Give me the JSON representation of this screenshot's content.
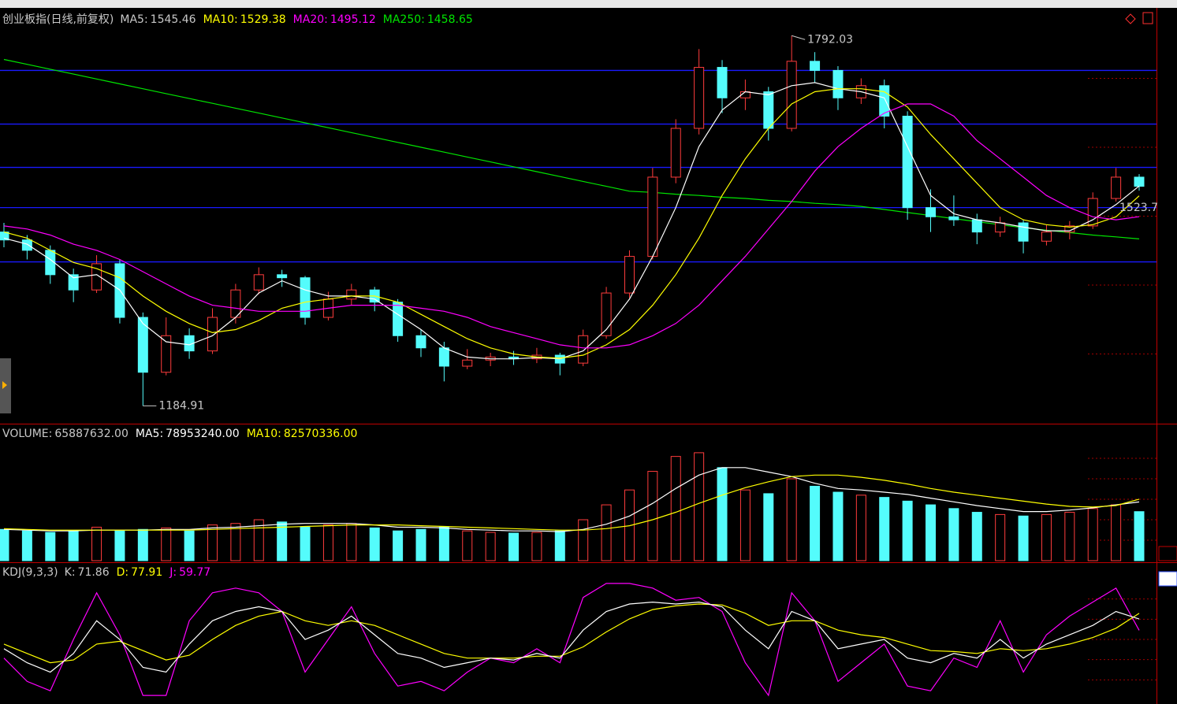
{
  "chart_data": [
    {
      "type": "candlestick",
      "title": "创业板指(日线,前复权)",
      "ylim": [
        1157,
        1835
      ],
      "up_color": "#ff3c3c",
      "down_color": "#54fcfc",
      "hlines": {
        "color": "#1a1aff",
        "values": [
          1735,
          1647,
          1576,
          1510,
          1421
        ]
      },
      "ohlc": [
        [
          1470,
          1485,
          1445,
          1457
        ],
        [
          1457,
          1465,
          1425,
          1440
        ],
        [
          1440,
          1448,
          1385,
          1400
        ],
        [
          1400,
          1410,
          1355,
          1375
        ],
        [
          1375,
          1432,
          1370,
          1418
        ],
        [
          1418,
          1425,
          1320,
          1330
        ],
        [
          1330,
          1338,
          1184.91,
          1240
        ],
        [
          1240,
          1330,
          1235,
          1300
        ],
        [
          1300,
          1312,
          1262,
          1275
        ],
        [
          1275,
          1345,
          1270,
          1330
        ],
        [
          1330,
          1385,
          1320,
          1375
        ],
        [
          1375,
          1412,
          1368,
          1400
        ],
        [
          1400,
          1408,
          1380,
          1395
        ],
        [
          1395,
          1398,
          1318,
          1330
        ],
        [
          1330,
          1372,
          1325,
          1360
        ],
        [
          1360,
          1385,
          1350,
          1375
        ],
        [
          1375,
          1380,
          1340,
          1355
        ],
        [
          1355,
          1360,
          1290,
          1300
        ],
        [
          1300,
          1310,
          1265,
          1280
        ],
        [
          1280,
          1290,
          1225,
          1250
        ],
        [
          1250,
          1278,
          1245,
          1260
        ],
        [
          1260,
          1272,
          1250,
          1265
        ],
        [
          1265,
          1275,
          1252,
          1262
        ],
        [
          1262,
          1280,
          1255,
          1268
        ],
        [
          1268,
          1272,
          1235,
          1255
        ],
        [
          1255,
          1310,
          1250,
          1300
        ],
        [
          1300,
          1380,
          1295,
          1370
        ],
        [
          1370,
          1440,
          1362,
          1430
        ],
        [
          1430,
          1575,
          1425,
          1560
        ],
        [
          1560,
          1655,
          1550,
          1640
        ],
        [
          1640,
          1770,
          1630,
          1740
        ],
        [
          1740,
          1752,
          1665,
          1690
        ],
        [
          1690,
          1720,
          1670,
          1700
        ],
        [
          1700,
          1708,
          1620,
          1640
        ],
        [
          1640,
          1792.03,
          1635,
          1750
        ],
        [
          1750,
          1765,
          1715,
          1735
        ],
        [
          1735,
          1742,
          1670,
          1690
        ],
        [
          1690,
          1722,
          1680,
          1710
        ],
        [
          1710,
          1720,
          1640,
          1660
        ],
        [
          1660,
          1668,
          1490,
          1510
        ],
        [
          1510,
          1540,
          1470,
          1495
        ],
        [
          1495,
          1530,
          1480,
          1490
        ],
        [
          1490,
          1500,
          1450,
          1470
        ],
        [
          1470,
          1495,
          1462,
          1485
        ],
        [
          1485,
          1490,
          1435,
          1455
        ],
        [
          1455,
          1482,
          1448,
          1470
        ],
        [
          1470,
          1488,
          1458,
          1480
        ],
        [
          1480,
          1535,
          1475,
          1525
        ],
        [
          1525,
          1575,
          1520,
          1560
        ],
        [
          1560,
          1565,
          1538,
          1545
        ]
      ],
      "series": [
        {
          "name": "MA5:",
          "color": "#ffffff",
          "values": [
            1460,
            1450,
            1425,
            1395,
            1400,
            1375,
            1320,
            1290,
            1285,
            1300,
            1330,
            1370,
            1390,
            1375,
            1365,
            1365,
            1360,
            1335,
            1310,
            1280,
            1265,
            1262,
            1262,
            1264,
            1262,
            1275,
            1310,
            1360,
            1430,
            1510,
            1610,
            1670,
            1700,
            1695,
            1710,
            1715,
            1705,
            1700,
            1690,
            1610,
            1530,
            1500,
            1490,
            1485,
            1478,
            1472,
            1472,
            1490,
            1515,
            1545.46
          ]
        },
        {
          "name": "MA10:",
          "color": "#ffff00",
          "values": [
            1470,
            1460,
            1440,
            1420,
            1410,
            1395,
            1365,
            1340,
            1320,
            1305,
            1310,
            1325,
            1345,
            1355,
            1360,
            1365,
            1365,
            1355,
            1335,
            1315,
            1295,
            1280,
            1270,
            1265,
            1263,
            1268,
            1285,
            1310,
            1350,
            1400,
            1460,
            1530,
            1590,
            1640,
            1680,
            1700,
            1705,
            1705,
            1700,
            1675,
            1630,
            1590,
            1550,
            1510,
            1490,
            1482,
            1478,
            1482,
            1495,
            1529.38
          ]
        },
        {
          "name": "MA20:",
          "color": "#ff00ff",
          "values": [
            1480,
            1475,
            1465,
            1450,
            1440,
            1425,
            1405,
            1385,
            1365,
            1350,
            1345,
            1340,
            1340,
            1340,
            1345,
            1350,
            1350,
            1350,
            1345,
            1340,
            1330,
            1315,
            1305,
            1295,
            1285,
            1280,
            1280,
            1285,
            1300,
            1320,
            1350,
            1390,
            1430,
            1475,
            1520,
            1570,
            1610,
            1640,
            1665,
            1680,
            1680,
            1660,
            1620,
            1590,
            1560,
            1530,
            1510,
            1495,
            1490,
            1495.12
          ]
        },
        {
          "name": "MA250:",
          "color": "#00e600",
          "values": [
            1753,
            1745,
            1737,
            1729,
            1721,
            1713,
            1705,
            1697,
            1689,
            1681,
            1673,
            1665,
            1657,
            1649,
            1641,
            1633,
            1625,
            1617,
            1609,
            1601,
            1593,
            1585,
            1577,
            1569,
            1561,
            1553,
            1545,
            1537,
            1535,
            1532,
            1530,
            1527,
            1525,
            1522,
            1520,
            1517,
            1515,
            1512,
            1507,
            1502,
            1497,
            1492,
            1487,
            1482,
            1477,
            1473,
            1469,
            1465,
            1462,
            1458.65
          ]
        }
      ],
      "annotations": [
        {
          "text": "1523.7"
        }
      ]
    },
    {
      "type": "bar",
      "ylim": [
        0,
        165000000
      ],
      "legend": {
        "name": "VOLUME:",
        "label": "65887632.00"
      },
      "values": [
        42000000,
        40000000,
        38000000,
        40000000,
        45000000,
        40000000,
        42000000,
        44000000,
        40000000,
        48000000,
        50000000,
        55000000,
        52000000,
        45000000,
        48000000,
        50000000,
        44000000,
        40000000,
        42000000,
        45000000,
        40000000,
        38000000,
        37000000,
        38000000,
        40000000,
        55000000,
        75000000,
        95000000,
        120000000,
        140000000,
        145000000,
        125000000,
        95000000,
        90000000,
        110000000,
        100000000,
        92000000,
        88000000,
        85000000,
        80000000,
        75000000,
        70000000,
        65000000,
        62000000,
        60000000,
        62000000,
        65000000,
        70000000,
        75000000,
        65887632
      ],
      "series": [
        {
          "name": "MA5:",
          "label": "78953240.00",
          "color": "#ffffff",
          "values": [
            42000000,
            41000000,
            40000000,
            40000000,
            41000000,
            41000000,
            41000000,
            42000000,
            42000000,
            44000000,
            45000000,
            47000000,
            49000000,
            50000000,
            50000000,
            50000000,
            48000000,
            45000000,
            45000000,
            44000000,
            42000000,
            41000000,
            40000000,
            40000000,
            39000000,
            42000000,
            49000000,
            60000000,
            77000000,
            97000000,
            115000000,
            125000000,
            125000000,
            119000000,
            113000000,
            104000000,
            97000000,
            95000000,
            92000000,
            89000000,
            84000000,
            79000000,
            74000000,
            70000000,
            66000000,
            66000000,
            68000000,
            71000000,
            75000000,
            78953240
          ]
        },
        {
          "name": "MA10:",
          "label": "82570336.00",
          "color": "#ffff00",
          "values": [
            43000000,
            42000000,
            41000000,
            41000000,
            41000000,
            41000000,
            41000000,
            41000000,
            41000000,
            42000000,
            43000000,
            44000000,
            45000000,
            46000000,
            47000000,
            48000000,
            48000000,
            48000000,
            47000000,
            46000000,
            45000000,
            44000000,
            43000000,
            42000000,
            41000000,
            41000000,
            43000000,
            47000000,
            55000000,
            65000000,
            77000000,
            88000000,
            98000000,
            106000000,
            113000000,
            115000000,
            115000000,
            112000000,
            108000000,
            103000000,
            97000000,
            92000000,
            88000000,
            84000000,
            80000000,
            76000000,
            73000000,
            72000000,
            74000000,
            82570336
          ]
        }
      ]
    },
    {
      "type": "line",
      "title": "KDJ(9,3,3)",
      "ylim": [
        -15,
        115
      ],
      "series": [
        {
          "name": "K:",
          "color": "#ffffff",
          "values": [
            40,
            25,
            15,
            35,
            70,
            50,
            20,
            15,
            45,
            70,
            80,
            85,
            80,
            50,
            60,
            75,
            55,
            35,
            30,
            20,
            25,
            30,
            28,
            35,
            30,
            60,
            80,
            88,
            90,
            88,
            90,
            85,
            60,
            40,
            80,
            70,
            40,
            45,
            50,
            30,
            25,
            35,
            30,
            50,
            30,
            45,
            55,
            65,
            80,
            71.86
          ]
        },
        {
          "name": "D:",
          "color": "#ffff00",
          "values": [
            45,
            35,
            25,
            28,
            45,
            48,
            38,
            28,
            33,
            50,
            65,
            75,
            80,
            70,
            65,
            70,
            65,
            55,
            45,
            35,
            30,
            30,
            30,
            32,
            32,
            42,
            58,
            72,
            82,
            86,
            88,
            87,
            78,
            65,
            70,
            70,
            60,
            55,
            52,
            45,
            38,
            37,
            35,
            40,
            38,
            40,
            45,
            52,
            62,
            77.91
          ]
        },
        {
          "name": "J:",
          "color": "#ff00ff",
          "values": [
            30,
            5,
            -5,
            50,
            100,
            55,
            -10,
            -10,
            70,
            100,
            105,
            100,
            80,
            15,
            50,
            85,
            35,
            0,
            5,
            -5,
            15,
            30,
            25,
            40,
            25,
            95,
            110,
            110,
            105,
            92,
            95,
            80,
            25,
            -10,
            100,
            70,
            5,
            25,
            45,
            0,
            -5,
            30,
            20,
            70,
            15,
            55,
            75,
            90,
            105,
            59.77
          ]
        }
      ]
    }
  ]
}
